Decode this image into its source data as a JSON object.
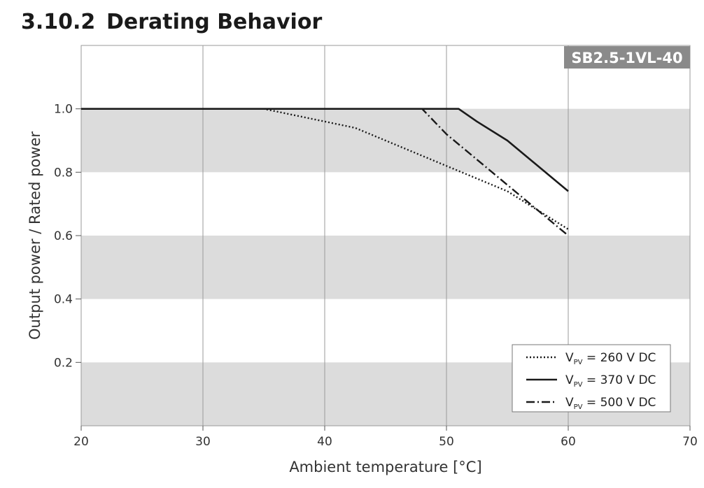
{
  "section": {
    "number": "3.10.2",
    "title": "Derating Behavior"
  },
  "chart_data": {
    "type": "line",
    "badge": "SB2.5-1VL-40",
    "xlabel": "Ambient temperature [°C]",
    "ylabel": "Output power / Rated power",
    "xlim": [
      20,
      70
    ],
    "ylim": [
      0,
      1.2
    ],
    "xticks": [
      20,
      30,
      40,
      50,
      60,
      70
    ],
    "yticks": [
      0.2,
      0.4,
      0.6,
      0.8,
      1.0
    ],
    "ytick_labels": [
      "0.2",
      "0.4",
      "0.6",
      "0.8",
      "1.0"
    ],
    "bands": [
      [
        0,
        0.2
      ],
      [
        0.4,
        0.6
      ],
      [
        0.8,
        1.0
      ]
    ],
    "band_color": "#dcdcdc",
    "grid": "vertical",
    "legend_position": "bottom-right",
    "series": [
      {
        "name_prefix": "V",
        "name_sub": "PV",
        "name_suffix": " = 260 V DC",
        "style": "dotted",
        "x": [
          20,
          35,
          40,
          42.5,
          50,
          55,
          60
        ],
        "y": [
          1.0,
          1.0,
          0.96,
          0.94,
          0.82,
          0.74,
          0.62
        ]
      },
      {
        "name_prefix": "V",
        "name_sub": "PV",
        "name_suffix": " = 370 V DC",
        "style": "solid",
        "x": [
          20,
          51,
          52.5,
          55,
          60
        ],
        "y": [
          1.0,
          1.0,
          0.96,
          0.9,
          0.74
        ]
      },
      {
        "name_prefix": "V",
        "name_sub": "PV",
        "name_suffix": " = 500 V DC",
        "style": "dashdot",
        "x": [
          20,
          48,
          50,
          55,
          60
        ],
        "y": [
          1.0,
          1.0,
          0.92,
          0.76,
          0.6
        ]
      }
    ]
  }
}
